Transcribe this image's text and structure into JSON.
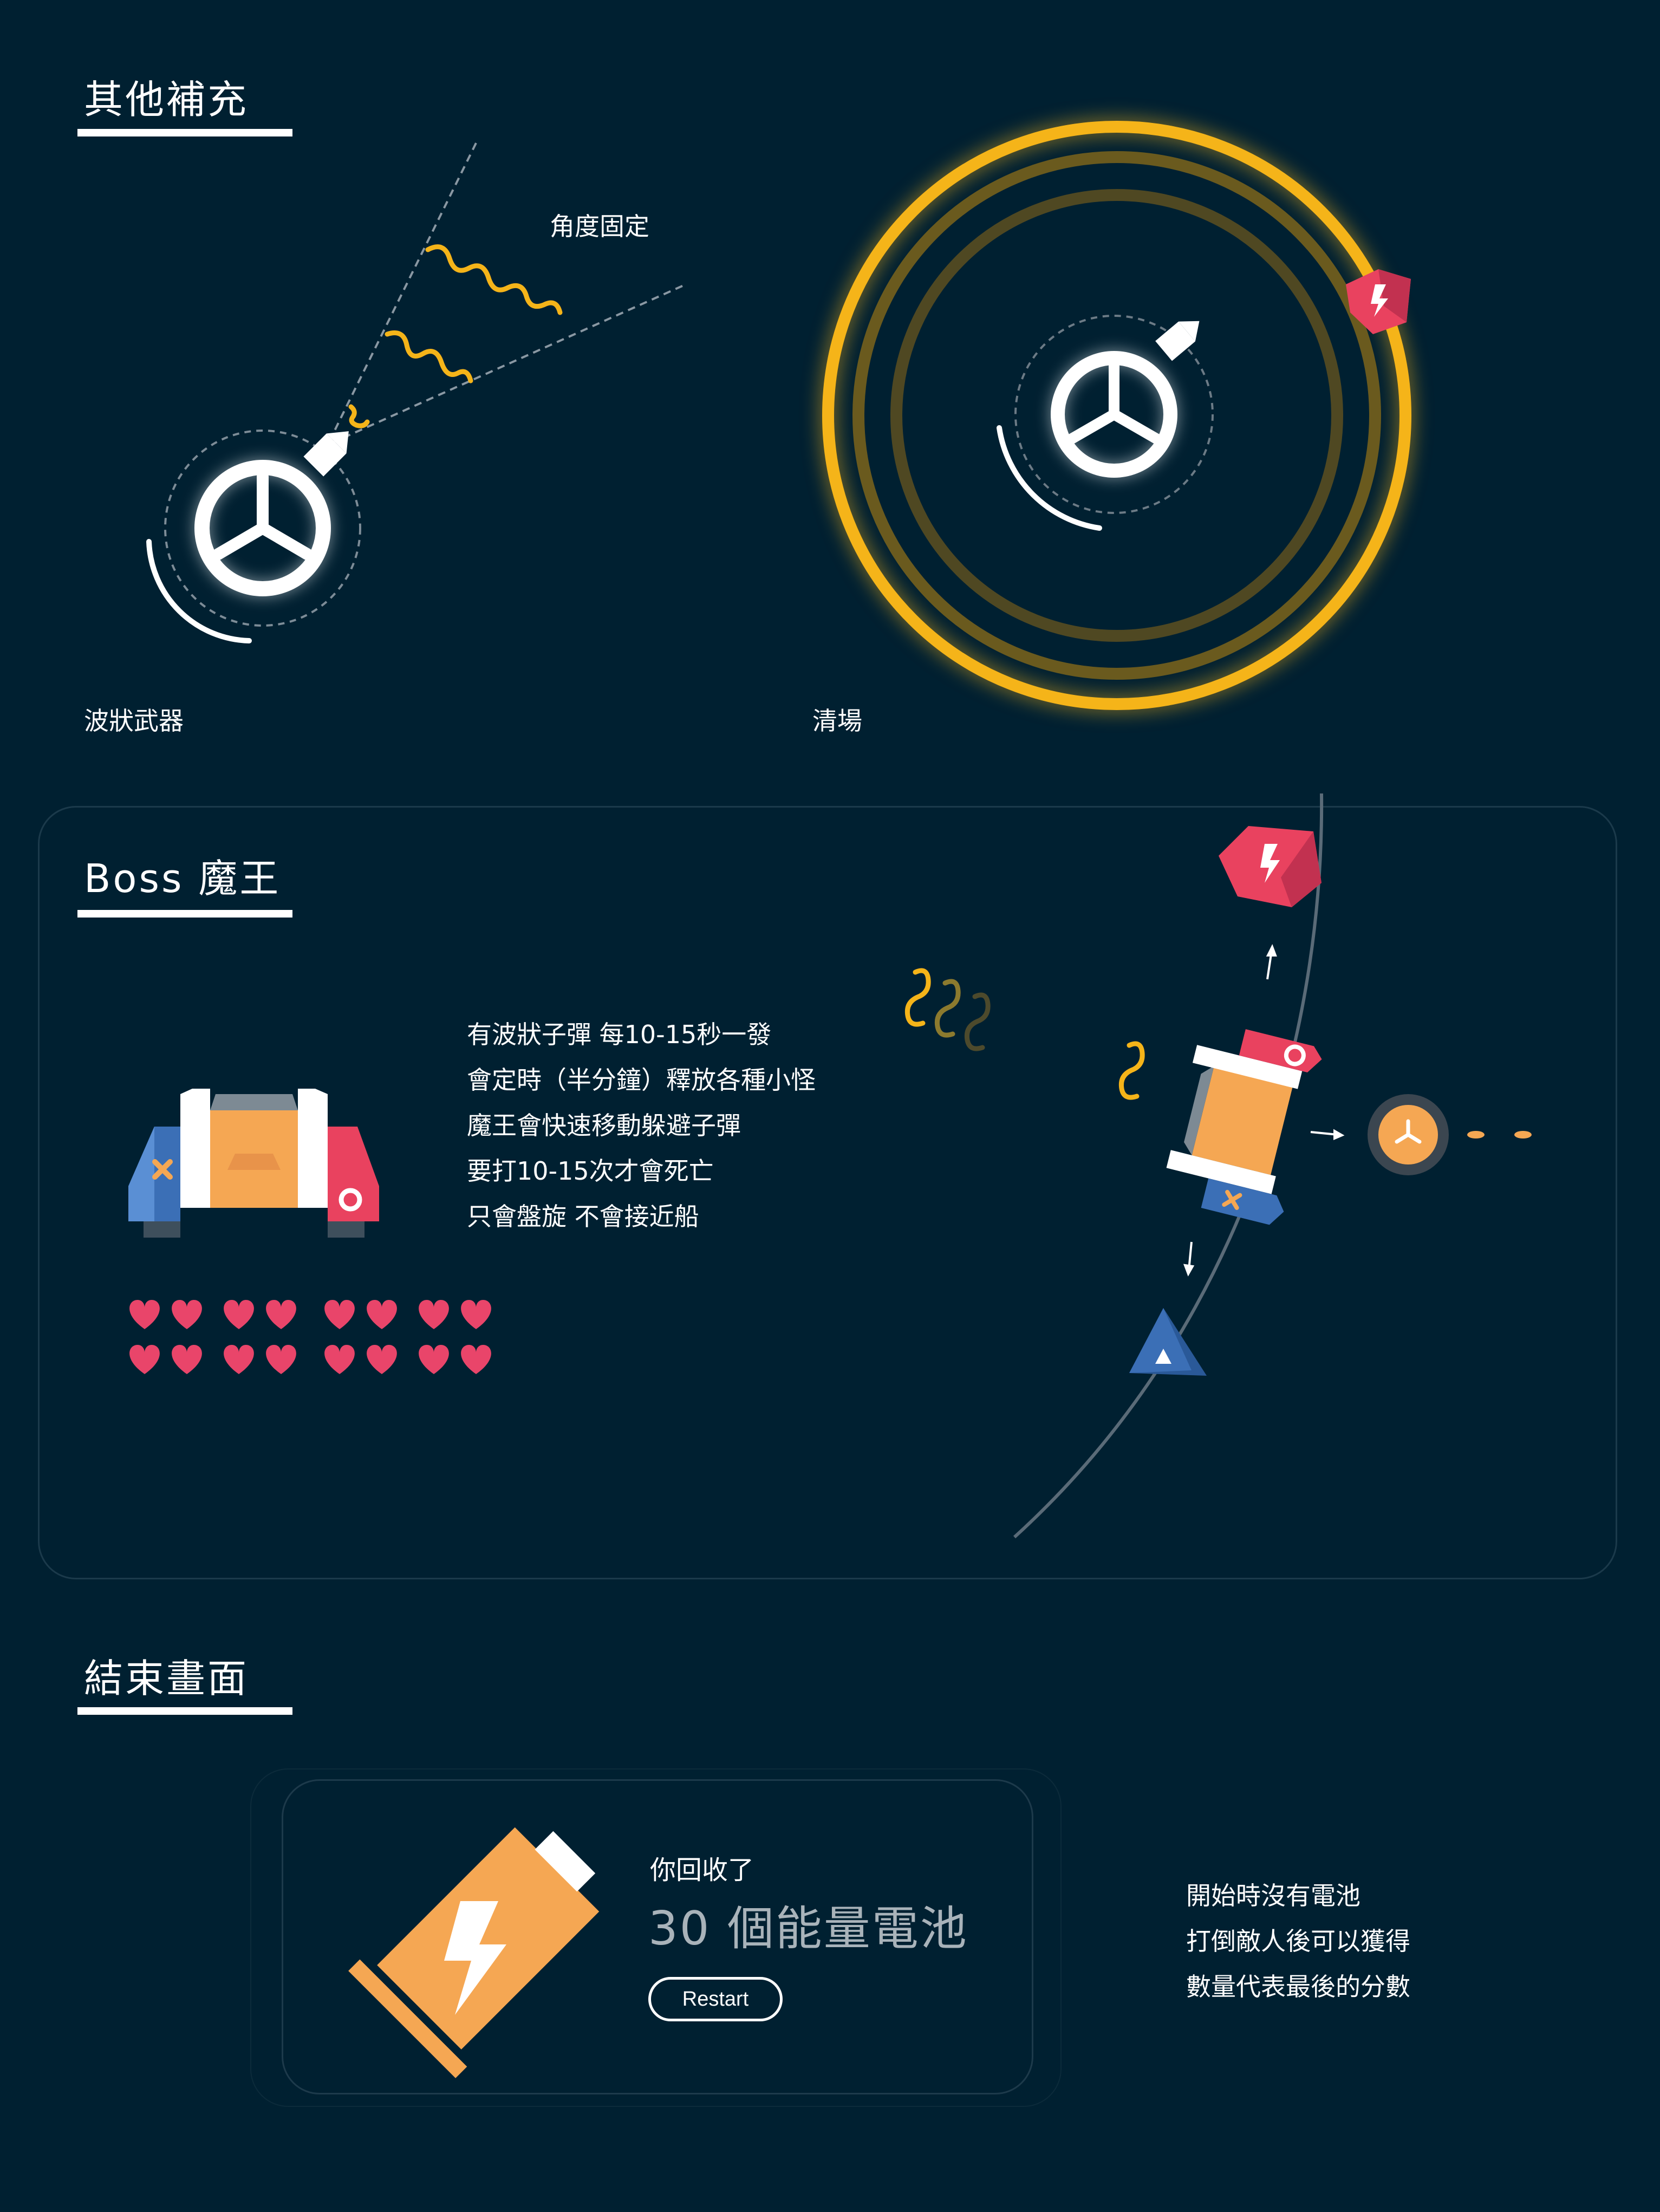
{
  "sections": {
    "other": {
      "title": "其他補充",
      "wave": {
        "caption": "波狀武器",
        "note": "角度固定"
      },
      "clear": {
        "caption": "清場"
      }
    },
    "boss": {
      "title": "Boss 魔王",
      "description": [
        "有波狀子彈  每10-15秒一發",
        "會定時（半分鐘）釋放各種小怪",
        "魔王會快速移動躲避子彈",
        "要打10-15次才會死亡",
        "只會盤旋 不會接近船"
      ],
      "health_hearts": 16
    },
    "ending": {
      "title": "結束畫面",
      "card": {
        "subtitle": "你回收了",
        "result": "30 個能量電池",
        "restart_label": "Restart"
      },
      "notes": [
        "開始時沒有電池",
        "打倒敵人後可以獲得",
        "數量代表最後的分數"
      ]
    }
  },
  "colors": {
    "background": "#002031",
    "accent_yellow": "#f5b419",
    "enemy_red": "#e9425f",
    "enemy_blue": "#3b6fb6",
    "boss_orange": "#f5a753",
    "heart_pink": "#e9456a"
  }
}
